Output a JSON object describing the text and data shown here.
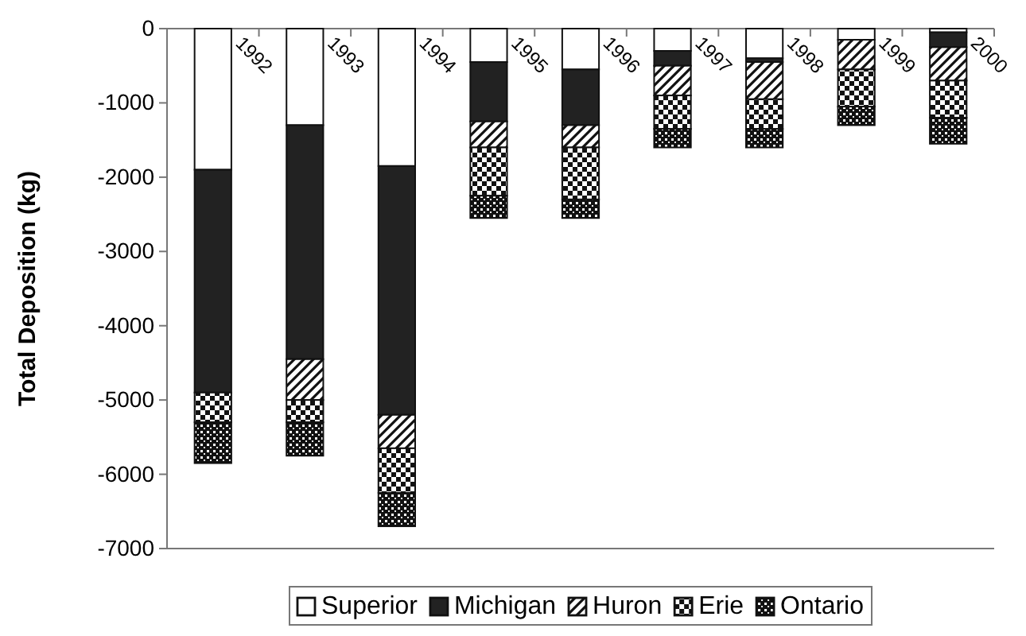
{
  "chart_data": {
    "type": "bar",
    "stacked": true,
    "ylabel": "Total Deposition (kg)",
    "categories": [
      "1992",
      "1993",
      "1994",
      "1995",
      "1996",
      "1997",
      "1998",
      "1999",
      "2000"
    ],
    "series": [
      {
        "name": "Superior",
        "color": "#ffffff",
        "values": [
          -1900,
          -1300,
          -1850,
          -450,
          -550,
          -300,
          -400,
          -150,
          -50
        ]
      },
      {
        "name": "Michigan",
        "color": "#222222",
        "values": [
          -3000,
          -3150,
          -3350,
          -800,
          -750,
          -200,
          -50,
          0,
          -200
        ]
      },
      {
        "name": "Huron",
        "color": "#111111",
        "values": [
          0,
          -550,
          -450,
          -350,
          -300,
          -400,
          -500,
          -400,
          -450
        ]
      },
      {
        "name": "Erie",
        "color": "#111111",
        "values": [
          -400,
          -300,
          -600,
          -650,
          -700,
          -450,
          -400,
          -500,
          -500
        ]
      },
      {
        "name": "Ontario",
        "color": "#111111",
        "values": [
          -550,
          -450,
          -450,
          -300,
          -250,
          -250,
          -250,
          -250,
          -350
        ]
      }
    ],
    "ylim": [
      -7000,
      0
    ],
    "yticks": [
      -7000,
      -6000,
      -5000,
      -4000,
      -3000,
      -2000,
      -1000,
      0
    ],
    "grid": false,
    "legend": "bottom"
  }
}
